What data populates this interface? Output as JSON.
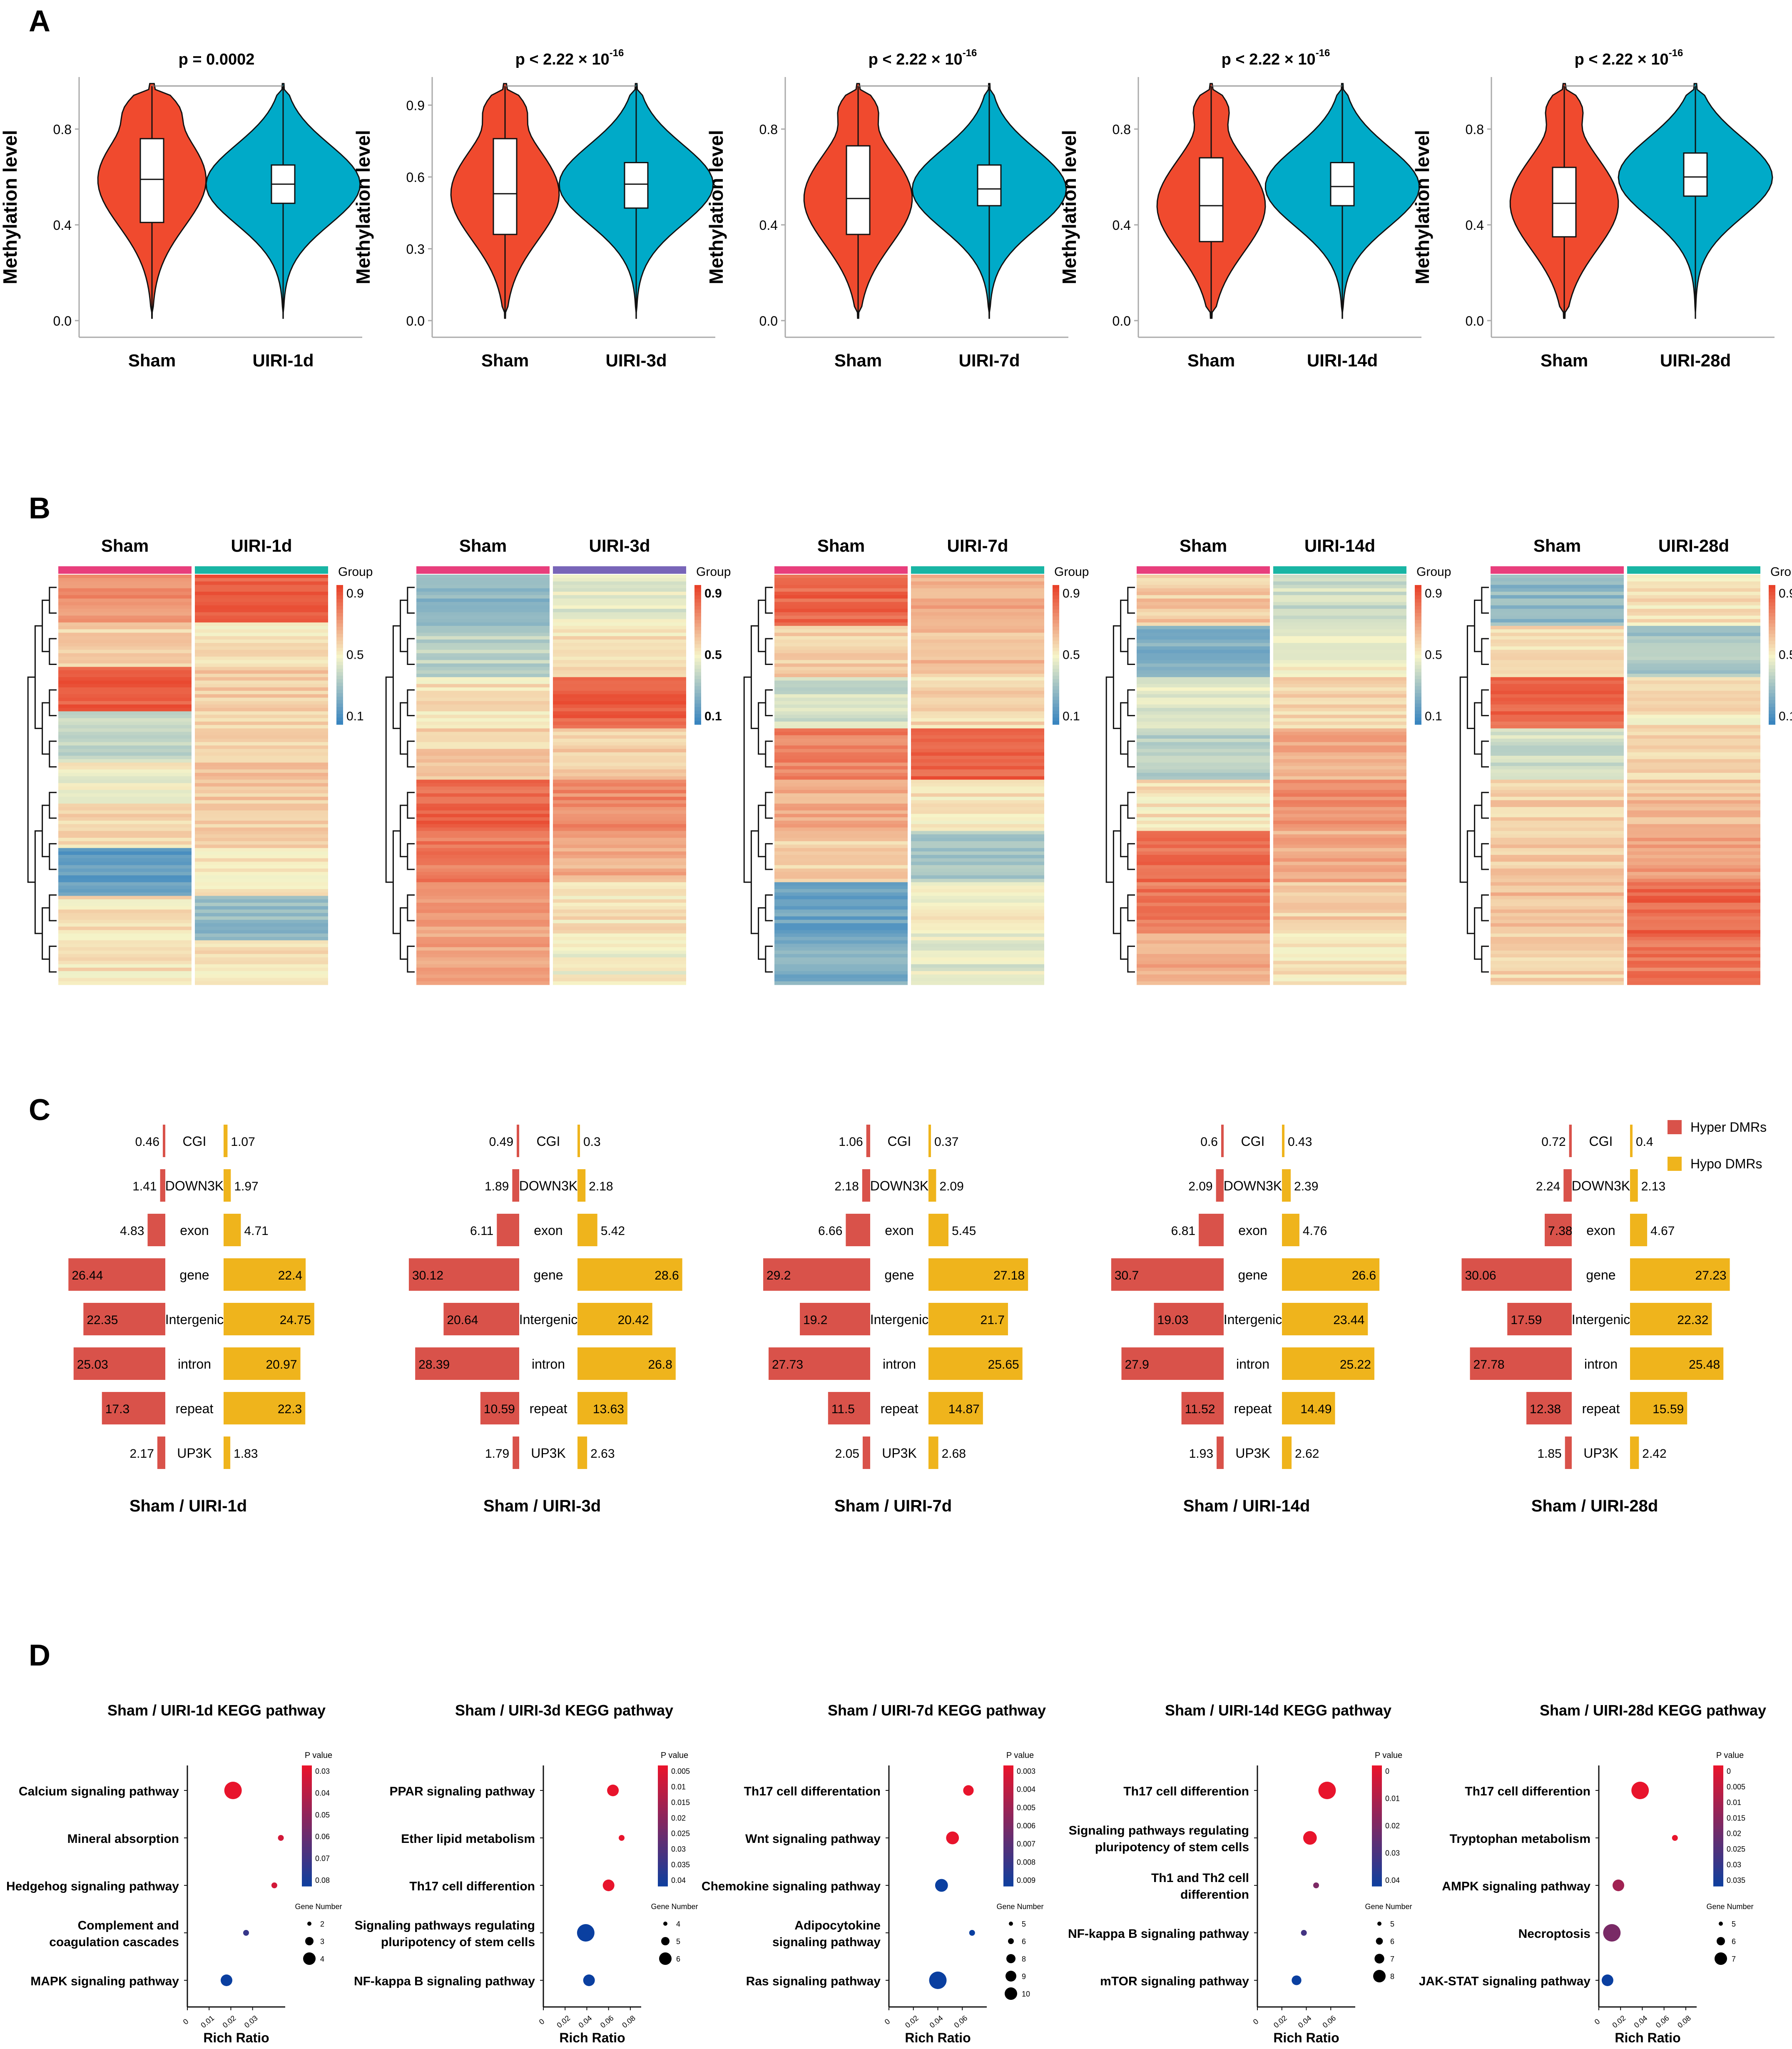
{
  "panel_letters": [
    "A",
    "B",
    "C",
    "D"
  ],
  "colors": {
    "sham": "#f04a2e",
    "uiri": "#00aac8",
    "hyper": "#d9524a",
    "hypo": "#efb41c",
    "heat_low": "#2f7fbf",
    "heat_mid": "#f6f4c8",
    "heat_high": "#e8422a",
    "group_sham": "#e83e7c",
    "group_uiri": "#19b5a4",
    "group_uiri_alt": "#7865b8",
    "pval_high": "#e8142c",
    "pval_low": "#0a3fa0"
  },
  "chart_data": [
    {
      "panel": "A",
      "type": "violin",
      "ylabel": "Methylation level",
      "groups": [
        "Sham",
        "UIRI-1d",
        "UIRI-3d",
        "UIRI-7d",
        "UIRI-14d",
        "UIRI-28d"
      ],
      "comparisons": [
        {
          "groups": [
            "Sham",
            "UIRI-1d"
          ],
          "p": "p = 0.0002",
          "p_exp": "",
          "yticks": [
            "0.0",
            "0.4",
            "0.8"
          ],
          "ylim": [
            0,
            1.0
          ],
          "sham": {
            "q1": 0.41,
            "median": 0.59,
            "q3": 0.76
          },
          "uiri": {
            "q1": 0.49,
            "median": 0.57,
            "q3": 0.65
          }
        },
        {
          "groups": [
            "Sham",
            "UIRI-3d"
          ],
          "p": "p < 2.22 × 10",
          "p_exp": "-16",
          "yticks": [
            "0.0",
            "0.3",
            "0.6",
            "0.9"
          ],
          "ylim": [
            0,
            1.0
          ],
          "sham": {
            "q1": 0.36,
            "median": 0.53,
            "q3": 0.76
          },
          "uiri": {
            "q1": 0.47,
            "median": 0.57,
            "q3": 0.66
          }
        },
        {
          "groups": [
            "Sham",
            "UIRI-7d"
          ],
          "p": "p < 2.22 × 10",
          "p_exp": "-16",
          "yticks": [
            "0.0",
            "0.4",
            "0.8"
          ],
          "ylim": [
            0,
            1.0
          ],
          "sham": {
            "q1": 0.36,
            "median": 0.51,
            "q3": 0.73
          },
          "uiri": {
            "q1": 0.48,
            "median": 0.55,
            "q3": 0.65
          }
        },
        {
          "groups": [
            "Sham",
            "UIRI-14d"
          ],
          "p": "p < 2.22 × 10",
          "p_exp": "-16",
          "yticks": [
            "0.0",
            "0.4",
            "0.8"
          ],
          "ylim": [
            0,
            1.0
          ],
          "sham": {
            "q1": 0.33,
            "median": 0.48,
            "q3": 0.68
          },
          "uiri": {
            "q1": 0.48,
            "median": 0.56,
            "q3": 0.66
          }
        },
        {
          "groups": [
            "Sham",
            "UIRI-28d"
          ],
          "p": "p < 2.22 × 10",
          "p_exp": "-16",
          "yticks": [
            "0.0",
            "0.4",
            "0.8"
          ],
          "ylim": [
            0,
            1.0
          ],
          "sham": {
            "q1": 0.35,
            "median": 0.49,
            "q3": 0.64
          },
          "uiri": {
            "q1": 0.52,
            "median": 0.6,
            "q3": 0.7
          }
        }
      ]
    },
    {
      "panel": "B",
      "type": "heatmap",
      "legend_title": "Group",
      "maps": [
        {
          "columns": [
            "Sham",
            "UIRI-1d"
          ],
          "scale_ticks": [
            "0.9",
            "0.5",
            "0.1"
          ],
          "blocks": [
            [
              0.78,
              0.92
            ],
            [
              0.6,
              0.55
            ],
            [
              0.93,
              0.62
            ],
            [
              0.35,
              0.6
            ],
            [
              0.5,
              0.62
            ],
            [
              0.58,
              0.6
            ],
            [
              0.12,
              0.55
            ],
            [
              0.55,
              0.25
            ],
            [
              0.55,
              0.55
            ]
          ]
        },
        {
          "columns": [
            "Sham",
            "UIRI-3d"
          ],
          "scale_ticks": [
            "0.9",
            "0.5",
            "0.1"
          ],
          "blocks": [
            [
              0.22,
              0.45
            ],
            [
              0.35,
              0.55
            ],
            [
              0.55,
              0.92
            ],
            [
              0.6,
              0.62
            ],
            [
              0.9,
              0.8
            ],
            [
              0.85,
              0.7
            ],
            [
              0.75,
              0.55
            ],
            [
              0.72,
              0.5
            ]
          ]
        },
        {
          "columns": [
            "Sham",
            "UIRI-7d"
          ],
          "scale_ticks": [
            "0.9",
            "0.5",
            "0.1"
          ],
          "blocks": [
            [
              0.9,
              0.7
            ],
            [
              0.6,
              0.65
            ],
            [
              0.4,
              0.58
            ],
            [
              0.82,
              0.92
            ],
            [
              0.7,
              0.55
            ],
            [
              0.6,
              0.3
            ],
            [
              0.15,
              0.5
            ],
            [
              0.2,
              0.45
            ]
          ]
        },
        {
          "columns": [
            "Sham",
            "UIRI-14d"
          ],
          "scale_ticks": [
            "0.9",
            "0.5",
            "0.1"
          ],
          "blocks": [
            [
              0.62,
              0.4
            ],
            [
              0.2,
              0.5
            ],
            [
              0.45,
              0.6
            ],
            [
              0.35,
              0.7
            ],
            [
              0.55,
              0.8
            ],
            [
              0.88,
              0.7
            ],
            [
              0.85,
              0.6
            ],
            [
              0.7,
              0.55
            ]
          ]
        },
        {
          "columns": [
            "Sham",
            "UIRI-28d"
          ],
          "scale_ticks": [
            "0.9",
            "0.5",
            "0.1"
          ],
          "blocks": [
            [
              0.25,
              0.55
            ],
            [
              0.55,
              0.3
            ],
            [
              0.9,
              0.55
            ],
            [
              0.4,
              0.6
            ],
            [
              0.6,
              0.65
            ],
            [
              0.62,
              0.75
            ],
            [
              0.65,
              0.9
            ],
            [
              0.6,
              0.85
            ]
          ]
        }
      ]
    },
    {
      "panel": "C",
      "type": "bar",
      "legend": [
        "Hyper DMRs",
        "Hypo DMRs"
      ],
      "categories": [
        "CGI",
        "DOWN3K",
        "exon",
        "gene",
        "Intergenic",
        "intron",
        "repeat",
        "UP3K"
      ],
      "comparisons": [
        {
          "label": "Sham / UIRI-1d",
          "hyper": [
            0.46,
            1.41,
            4.83,
            26.44,
            22.35,
            25.03,
            17.3,
            2.17
          ],
          "hypo": [
            1.07,
            1.97,
            4.71,
            22.4,
            24.75,
            20.97,
            22.3,
            1.83
          ]
        },
        {
          "label": "Sham / UIRI-3d",
          "hyper": [
            0.49,
            1.89,
            6.11,
            30.12,
            20.64,
            28.39,
            10.59,
            1.79
          ],
          "hypo": [
            0.3,
            2.18,
            5.42,
            28.6,
            20.42,
            26.8,
            13.63,
            2.63
          ]
        },
        {
          "label": "Sham / UIRI-7d",
          "hyper": [
            1.06,
            2.18,
            6.66,
            29.2,
            19.2,
            27.73,
            11.5,
            2.05
          ],
          "hypo": [
            0.37,
            2.09,
            5.45,
            27.18,
            21.7,
            25.65,
            14.87,
            2.68
          ]
        },
        {
          "label": "Sham / UIRI-14d",
          "hyper": [
            0.6,
            2.09,
            6.81,
            30.7,
            19.03,
            27.9,
            11.52,
            1.93
          ],
          "hypo": [
            0.43,
            2.39,
            4.76,
            26.6,
            23.44,
            25.22,
            14.49,
            2.62
          ]
        },
        {
          "label": "Sham / UIRI-28d",
          "hyper": [
            0.72,
            2.24,
            7.38,
            30.06,
            17.59,
            27.78,
            12.38,
            1.85
          ],
          "hypo": [
            0.4,
            2.13,
            4.67,
            27.23,
            22.32,
            25.48,
            15.59,
            2.42
          ]
        }
      ]
    },
    {
      "panel": "D",
      "type": "scatter",
      "xlabel": "Rich Ratio",
      "pval_title": "P value",
      "gene_title": "Gene Number",
      "plots": [
        {
          "title": "Sham / UIRI-1d KEGG pathway",
          "pathways": [
            "Calcium signaling pathway",
            "Mineral absorption",
            "Hedgehog signaling pathway",
            "Complement and coagulation cascades",
            "MAPK signaling pathway"
          ],
          "rich": [
            0.021,
            0.043,
            0.04,
            0.027,
            0.018
          ],
          "pval": [
            0.03,
            0.035,
            0.035,
            0.07,
            0.08
          ],
          "genes": [
            4,
            2,
            2,
            2,
            3
          ],
          "xticks": [
            "0",
            "0.01",
            "0.02",
            "0.03"
          ],
          "xlim": [
            0,
            0.045
          ],
          "pval_ticks": [
            "0.03",
            "0.04",
            "0.05",
            "0.06",
            "0.07",
            "0.08"
          ],
          "gene_ticks": [
            "2",
            "3",
            "4"
          ]
        },
        {
          "title": "Sham / UIRI-3d KEGG pathway",
          "pathways": [
            "PPAR signaling pathway",
            "Ether lipid metabolism",
            "Th17 cell differention",
            "Signaling pathways regulating pluripotency of stem cells",
            "NF-kappa B signaling pathway"
          ],
          "rich": [
            0.064,
            0.072,
            0.06,
            0.039,
            0.042
          ],
          "pval": [
            0.005,
            0.005,
            0.005,
            0.04,
            0.04
          ],
          "genes": [
            5,
            4,
            5,
            6,
            5
          ],
          "xticks": [
            "0",
            "0.02",
            "0.04",
            "0.06",
            "0.08"
          ],
          "xlim": [
            0,
            0.09
          ],
          "pval_ticks": [
            "0.005",
            "0.01",
            "0.015",
            "0.02",
            "0.025",
            "0.03",
            "0.035",
            "0.04"
          ],
          "gene_ticks": [
            "4",
            "5",
            "6"
          ]
        },
        {
          "title": "Sham / UIRI-7d  KEGG pathway",
          "pathways": [
            "Th17 cell differentation",
            "Wnt signaling pathway",
            "Chemokine signaling pathway",
            "Adipocytokine signaling pathway",
            "Ras signaling pathway"
          ],
          "rich": [
            0.065,
            0.052,
            0.043,
            0.068,
            0.04
          ],
          "pval": [
            0.003,
            0.003,
            0.009,
            0.009,
            0.009
          ],
          "genes": [
            7,
            8,
            8,
            5,
            10
          ],
          "xticks": [
            "0",
            "0.02",
            "0.04",
            "0.06"
          ],
          "xlim": [
            0,
            0.08
          ],
          "pval_ticks": [
            "0.003",
            "0.004",
            "0.005",
            "0.006",
            "0.007",
            "0.008",
            "0.009"
          ],
          "gene_ticks": [
            "5",
            "6",
            "8",
            "9",
            "10"
          ]
        },
        {
          "title": "Sham / UIRI-14d KEGG pathway",
          "pathways": [
            "Th17 cell differention",
            "Signaling pathways regulating pluripotency of stem cells",
            "Th1 and Th2 cell differention",
            "NF-kappa B signaling pathway",
            "mTOR signaling pathway"
          ],
          "rich": [
            0.057,
            0.043,
            0.048,
            0.038,
            0.032
          ],
          "pval": [
            0.001,
            0.001,
            0.02,
            0.03,
            0.04
          ],
          "genes": [
            8,
            7,
            5,
            5,
            6
          ],
          "xticks": [
            "0",
            "0.02",
            "0.04",
            "0.06"
          ],
          "xlim": [
            0,
            0.08
          ],
          "pval_ticks": [
            "0",
            "0.01",
            "0.02",
            "0.03",
            "0.04"
          ],
          "gene_ticks": [
            "5",
            "6",
            "7",
            "8"
          ]
        },
        {
          "title": "Sham / UIRI-28d KEGG pathway",
          "pathways": [
            "Th17 cell differention",
            "Tryptophan metabolism",
            "AMPK signaling pathway",
            "Necroptosis",
            "JAK-STAT signaling pathway"
          ],
          "rich": [
            0.038,
            0.07,
            0.018,
            0.012,
            0.008
          ],
          "pval": [
            0.001,
            0.001,
            0.012,
            0.018,
            0.035
          ],
          "genes": [
            7,
            5,
            6,
            7,
            6
          ],
          "xticks": [
            "0",
            "0.02",
            "0.04",
            "0.06",
            "0.08"
          ],
          "xlim": [
            0,
            0.09
          ],
          "pval_ticks": [
            "0",
            "0.005",
            "0.01",
            "0.015",
            "0.02",
            "0.025",
            "0.03",
            "0.035"
          ],
          "gene_ticks": [
            "5",
            "6",
            "7"
          ]
        }
      ]
    }
  ]
}
